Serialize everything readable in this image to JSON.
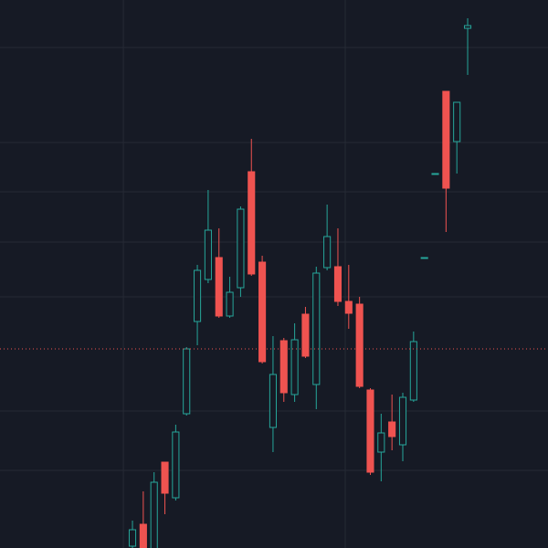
{
  "chart_data": {
    "type": "candlestick",
    "x": [
      0,
      1,
      2,
      3,
      4,
      5,
      6,
      7,
      8,
      9,
      10,
      11,
      12,
      13,
      14,
      15,
      16,
      17,
      18,
      19,
      20,
      21,
      22,
      23,
      24,
      25,
      26,
      27,
      28,
      29,
      30,
      31
    ],
    "open": [
      2,
      26,
      -5,
      94,
      55,
      147,
      248,
      294,
      318,
      254,
      285,
      412,
      313,
      132,
      227,
      168,
      256,
      179,
      307,
      308,
      270,
      267,
      173,
      105,
      138,
      113,
      162,
      318,
      410,
      500,
      445,
      569
    ],
    "high": [
      30,
      62,
      83,
      94,
      135,
      220,
      310,
      392,
      350,
      297,
      374,
      448,
      320,
      232,
      230,
      246,
      264,
      308,
      376,
      350,
      310,
      275,
      175,
      147,
      168,
      170,
      237,
      318,
      410,
      500,
      488,
      580
    ],
    "low": [
      -10,
      -10,
      -10,
      37,
      52,
      145,
      222,
      290,
      252,
      252,
      275,
      298,
      202,
      105,
      160,
      160,
      208,
      152,
      304,
      265,
      240,
      175,
      80,
      73,
      107,
      95,
      160,
      318,
      410,
      346,
      410,
      518
    ],
    "close": [
      20,
      -5,
      72,
      60,
      127,
      218,
      304,
      348,
      254,
      280,
      371,
      300,
      204,
      190,
      170,
      228,
      210,
      301,
      341,
      270,
      257,
      177,
      83,
      126,
      122,
      165,
      226,
      318,
      410,
      394,
      488,
      572
    ],
    "up_color": "#26a69a",
    "down_color": "#ef5350",
    "xlim": [
      -12.25,
      38.43
    ],
    "ylim": [
      0,
      600
    ],
    "xticks": [
      -0.84,
      19.68
    ],
    "yticks": [
      85,
      150,
      275,
      335,
      390,
      444,
      548
    ],
    "grid": true,
    "price_line": 218,
    "price_line_color": "#ef5350"
  }
}
